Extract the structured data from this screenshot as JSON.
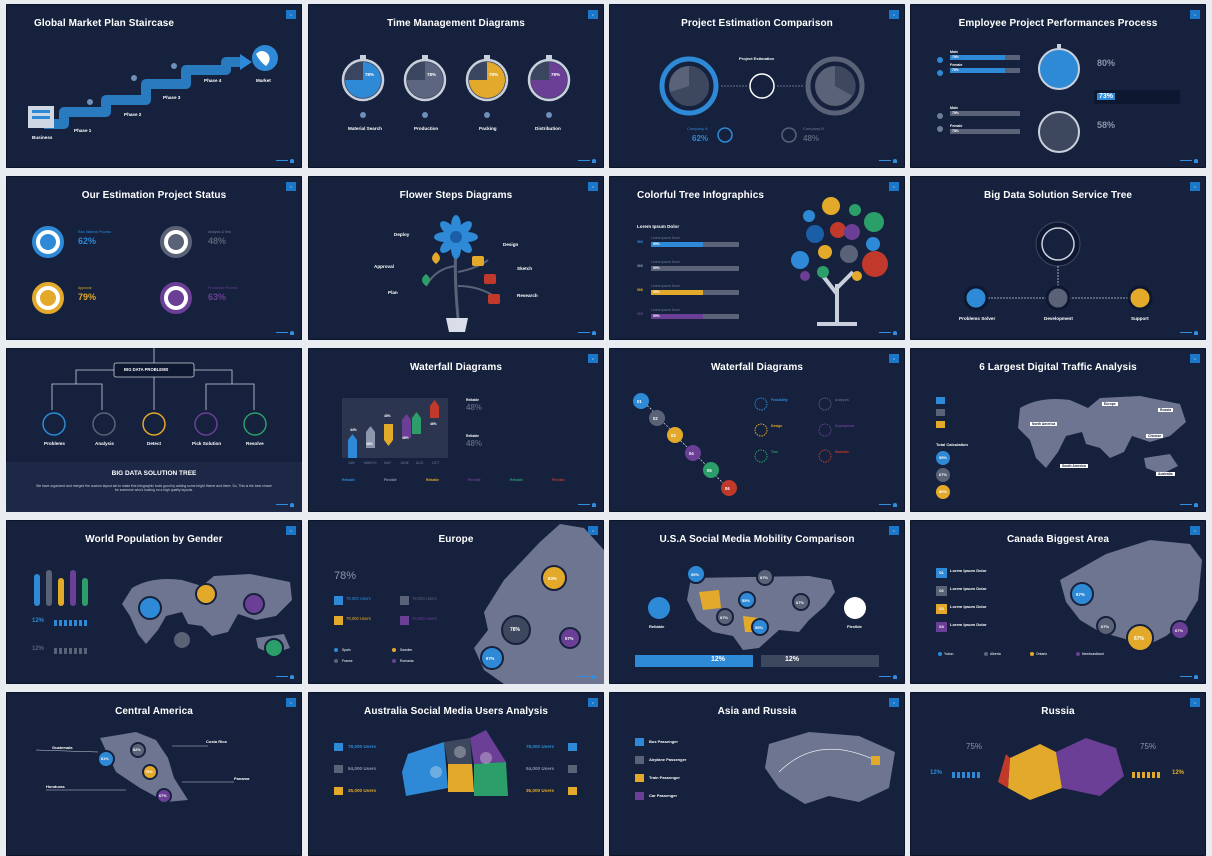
{
  "slides": [
    {
      "title": "Global Market Plan Staircase",
      "labels": [
        "Business",
        "Phase 1",
        "Phase 2",
        "Phase 3",
        "Phase 4",
        "Market"
      ]
    },
    {
      "title": "Time Management Diagrams",
      "labels": [
        "Material Search",
        "Production",
        "Packing",
        "Distribution"
      ],
      "values": [
        "78%",
        "78%",
        "78%",
        "78%"
      ]
    },
    {
      "title": "Project Estimation Comparison",
      "center": "Project Estimation",
      "company_a": "Company A",
      "company_b": "Company B",
      "pct_a": "62%",
      "pct_b": "48%"
    },
    {
      "title": "Employee Project Performances Process",
      "rows": [
        {
          "label": "Male",
          "value": "78%"
        },
        {
          "label": "Female",
          "value": "78%"
        },
        {
          "label": "Male",
          "value": "78%"
        },
        {
          "label": "Female",
          "value": "78%"
        }
      ],
      "stats": [
        "80%",
        "73%",
        "58%"
      ]
    },
    {
      "title": "Our Estimation Project Status",
      "items": [
        {
          "label": "Raw Material Process",
          "value": "62%"
        },
        {
          "label": "Analysis & Test",
          "value": "48%"
        },
        {
          "label": "Approval",
          "value": "79%"
        },
        {
          "label": "Production Process",
          "value": "63%"
        }
      ]
    },
    {
      "title": "Flower Steps Diagrams",
      "labels": [
        "Deploy",
        "Approval",
        "Plan",
        "Design",
        "Sketch",
        "Research"
      ]
    },
    {
      "title": "Colorful Tree Infographics",
      "heading": "Lorem Ipsum Dolor",
      "row_label": "Lorem Ipsum Dolor",
      "nums": [
        "56K",
        "56K",
        "56K",
        "56K"
      ],
      "bars": [
        "59%",
        "59%",
        "59%",
        "59%"
      ]
    },
    {
      "title": "Big Data Solution Service Tree",
      "labels": [
        "Problems Solver",
        "Development",
        "Support"
      ]
    },
    {
      "title": "BIG DATA PROBLEMS",
      "labels": [
        "Problems",
        "Analysis",
        "Detect",
        "Pick Solution",
        "Resolve"
      ],
      "subtitle": "BIG DATA SOLUTION TREE",
      "body": "We have organized and merged the custom layout set to make this infographic tools good by adding some bright theme and there. So, This is the best choice for someone who's looking on a high quality layouts."
    },
    {
      "title": "Waterfall Diagrams",
      "bars": [
        "44%",
        "48%",
        "45%",
        "48%",
        "46%"
      ],
      "months": [
        "JAN",
        "MARCH",
        "MAY",
        "JUNE",
        "AUG",
        "OCT"
      ],
      "side": [
        {
          "label": "Reliable",
          "value": "48%"
        },
        {
          "label": "Reliable",
          "value": "48%"
        }
      ],
      "legend": [
        "Reliable",
        "Flexible",
        "Reliable",
        "Flexible",
        "Reliable",
        "Flexible"
      ]
    },
    {
      "title": "Waterfall Diagrams",
      "steps": [
        "01",
        "02",
        "03",
        "04",
        "05",
        "06"
      ],
      "items": [
        "Feasibility",
        "Design",
        "Test",
        "Analysis",
        "Deployment",
        "Maintain"
      ]
    },
    {
      "title": "6 Largest Digital Traffic Analysis",
      "calc": "Total Calculation",
      "values": [
        "55%",
        "67%",
        "80%"
      ],
      "tags": [
        "Europe",
        "Russia",
        "Chinese",
        "North America",
        "South America",
        "Australia"
      ]
    },
    {
      "title": "World Population by Gender",
      "pcts": [
        "12%",
        "12%"
      ]
    },
    {
      "title": "Europe",
      "big": "78%",
      "users": [
        "78,000 Users",
        "78,000 Users",
        "78,000 Users",
        "78,000 Users"
      ],
      "countries": [
        "Spain",
        "Sweden",
        "France",
        "Romania"
      ],
      "map_vals": [
        "83%",
        "78%",
        "57%",
        "67%"
      ]
    },
    {
      "title": "U.S.A Social Media Mobility Comparison",
      "vals": [
        "55%",
        "67%",
        "55%",
        "67%",
        "67%",
        "55%"
      ],
      "left": "Reliable",
      "right": "Flexible",
      "pct_l": "12%",
      "pct_r": "12%"
    },
    {
      "title": "Canada Biggest Area",
      "items": [
        "Lorem Ipsum Dolor",
        "Lorem Ipsum Dolor",
        "Lorem Ipsum Dolor",
        "Lorem Ipsum Dolor"
      ],
      "nums": [
        "01",
        "02",
        "03",
        "04"
      ],
      "map_vals": [
        "67%",
        "67%",
        "67%",
        "67%"
      ],
      "regions": [
        "Yukon",
        "Alberta",
        "Ontario",
        "Newfoundland"
      ]
    },
    {
      "title": "Central America",
      "countries": [
        "Guatemala",
        "Honduras",
        "Costa Rica",
        "Panama"
      ],
      "vals": [
        "81%",
        "82%",
        "78%",
        "67%"
      ]
    },
    {
      "title": "Australia Social Media Users Analysis",
      "users": [
        "78,000 Users",
        "54,000 Users",
        "35,000 Users",
        "78,000 Users",
        "54,000 Users",
        "35,000 Users"
      ]
    },
    {
      "title": "Asia and Russia",
      "items": [
        "Bus Passenger",
        "Airplane Passenger",
        "Train Passenger",
        "Car Passenger"
      ]
    },
    {
      "title": "Russia",
      "pcts": [
        "75%",
        "75%"
      ],
      "small": [
        "12%",
        "12%"
      ]
    }
  ]
}
